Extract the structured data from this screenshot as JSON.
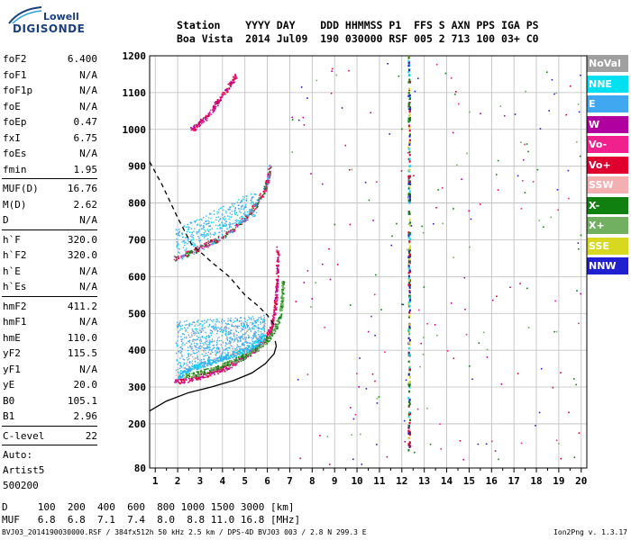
{
  "logo": {
    "line1": "Lowell",
    "line2": "DIGISONDE"
  },
  "header": {
    "line1": "Station    YYYY DAY    DDD HHMMSS P1  FFS S AXN PPS IGA PS",
    "line2": "Boa Vista  2014 Jul09  190 030000 RSF 005 2 713 100 03+ C0"
  },
  "params": {
    "group1": [
      {
        "name": "foF2",
        "value": "6.400"
      },
      {
        "name": "foF1",
        "value": "N/A"
      },
      {
        "name": "foF1p",
        "value": "N/A"
      },
      {
        "name": "foE",
        "value": "N/A"
      },
      {
        "name": "foEp",
        "value": "0.47"
      },
      {
        "name": "fxI",
        "value": "6.75"
      },
      {
        "name": "foEs",
        "value": "N/A"
      },
      {
        "name": "fmin",
        "value": "1.95"
      }
    ],
    "group2": [
      {
        "name": "MUF(D)",
        "value": "16.76"
      },
      {
        "name": "M(D)",
        "value": "2.62"
      },
      {
        "name": "D",
        "value": "N/A"
      }
    ],
    "group3": [
      {
        "name": "h`F",
        "value": "320.0"
      },
      {
        "name": "h`F2",
        "value": "320.0"
      },
      {
        "name": "h`E",
        "value": "N/A"
      },
      {
        "name": "h`Es",
        "value": "N/A"
      }
    ],
    "group4": [
      {
        "name": "hmF2",
        "value": "411.2"
      },
      {
        "name": "hmF1",
        "value": "N/A"
      },
      {
        "name": "hmE",
        "value": "110.0"
      },
      {
        "name": "yF2",
        "value": "115.5"
      },
      {
        "name": "yF1",
        "value": "N/A"
      },
      {
        "name": "yE",
        "value": "20.0"
      },
      {
        "name": "B0",
        "value": "105.1"
      },
      {
        "name": "B1",
        "value": "2.96"
      }
    ],
    "group5": [
      {
        "name": "C-level",
        "value": "22"
      }
    ],
    "auto": [
      "Auto:",
      "Artist5",
      "500200"
    ]
  },
  "legend": [
    {
      "label": "NoVal",
      "color": "#a0a0a0"
    },
    {
      "label": "NNE",
      "color": "#00e0f0"
    },
    {
      "label": "E",
      "color": "#40a8f0"
    },
    {
      "label": "W",
      "color": "#b000a0"
    },
    {
      "label": "Vo-",
      "color": "#f0208c"
    },
    {
      "label": "Vo+",
      "color": "#e00030"
    },
    {
      "label": "SSW",
      "color": "#f4b0b0"
    },
    {
      "label": "X-",
      "color": "#108010"
    },
    {
      "label": "X+",
      "color": "#70b060"
    },
    {
      "label": "SSE",
      "color": "#d8d820"
    },
    {
      "label": "NNW",
      "color": "#2020d0"
    }
  ],
  "muf_table": {
    "line1": "D     100  200  400  600  800 1000 1500 3000 [km]",
    "line2": "MUF   6.8  6.8  7.1  7.4  8.0  8.8 11.0 16.8 [MHz]"
  },
  "footer": "BVJ03_2014190030000.RSF / 384fx512h 50 kHz 2.5 km / DPS-4D BVJ03 003 / 2.8 N 299.3 E",
  "version": "Ion2Png v. 1.3.17",
  "chart_data": {
    "type": "scatter",
    "xlabel": "",
    "ylabel": "",
    "xlim": [
      0.75,
      20.25
    ],
    "ylim": [
      80,
      1200
    ],
    "x_ticks": [
      1,
      2,
      3,
      4,
      5,
      6,
      7,
      8,
      9,
      10,
      11,
      12,
      13,
      14,
      15,
      16,
      17,
      18,
      19,
      20
    ],
    "y_ticks": [
      80,
      200,
      300,
      400,
      500,
      600,
      700,
      800,
      900,
      1000,
      1100,
      1200
    ],
    "grid": true,
    "series": [
      {
        "name": "profile-solid",
        "values": [
          [
            0.75,
            235
          ],
          [
            1.5,
            262
          ],
          [
            2.5,
            285
          ],
          [
            3.5,
            300
          ],
          [
            4.5,
            318
          ],
          [
            5.3,
            338
          ],
          [
            5.9,
            363
          ],
          [
            6.3,
            390
          ],
          [
            6.4,
            411
          ],
          [
            6.35,
            425
          ]
        ]
      },
      {
        "name": "profile-dashed",
        "values": [
          [
            0.75,
            912
          ],
          [
            1.3,
            850
          ],
          [
            2.0,
            760
          ],
          [
            2.6,
            690
          ],
          [
            3.5,
            640
          ],
          [
            4.3,
            600
          ],
          [
            5.0,
            550
          ],
          [
            5.6,
            520
          ],
          [
            6.0,
            495
          ],
          [
            6.3,
            470
          ]
        ]
      },
      {
        "name": "o-trace",
        "values": [
          [
            1.8,
            315
          ],
          [
            2.5,
            322
          ],
          [
            3.0,
            330
          ],
          [
            3.5,
            340
          ],
          [
            4.0,
            350
          ],
          [
            4.5,
            365
          ],
          [
            5.0,
            385
          ],
          [
            5.5,
            405
          ],
          [
            5.9,
            430
          ],
          [
            6.15,
            460
          ],
          [
            6.3,
            500
          ],
          [
            6.38,
            550
          ],
          [
            6.42,
            610
          ],
          [
            6.45,
            680
          ]
        ]
      },
      {
        "name": "x-trace",
        "values": [
          [
            2.3,
            330
          ],
          [
            3.0,
            340
          ],
          [
            3.7,
            352
          ],
          [
            4.3,
            366
          ],
          [
            4.9,
            383
          ],
          [
            5.4,
            402
          ],
          [
            5.9,
            425
          ],
          [
            6.3,
            455
          ],
          [
            6.55,
            495
          ],
          [
            6.65,
            540
          ],
          [
            6.7,
            590
          ]
        ]
      },
      {
        "name": "e-trace-low",
        "values": [
          [
            2.0,
            330
          ],
          [
            2.5,
            350
          ],
          [
            3.0,
            360
          ],
          [
            3.5,
            370
          ],
          [
            4.0,
            380
          ],
          [
            4.5,
            390
          ],
          [
            5.0,
            400
          ],
          [
            5.5,
            420
          ],
          [
            5.8,
            440
          ]
        ]
      },
      {
        "name": "second-hop",
        "values": [
          [
            1.8,
            650
          ],
          [
            2.5,
            665
          ],
          [
            3.0,
            680
          ],
          [
            3.5,
            695
          ],
          [
            4.0,
            710
          ],
          [
            4.5,
            730
          ],
          [
            5.0,
            760
          ],
          [
            5.4,
            790
          ],
          [
            5.8,
            830
          ],
          [
            6.0,
            860
          ],
          [
            6.1,
            900
          ]
        ]
      },
      {
        "name": "third-hop",
        "values": [
          [
            2.6,
            1000
          ],
          [
            3.0,
            1020
          ],
          [
            3.5,
            1050
          ],
          [
            3.8,
            1080
          ],
          [
            4.2,
            1110
          ],
          [
            4.6,
            1150
          ]
        ]
      }
    ]
  }
}
